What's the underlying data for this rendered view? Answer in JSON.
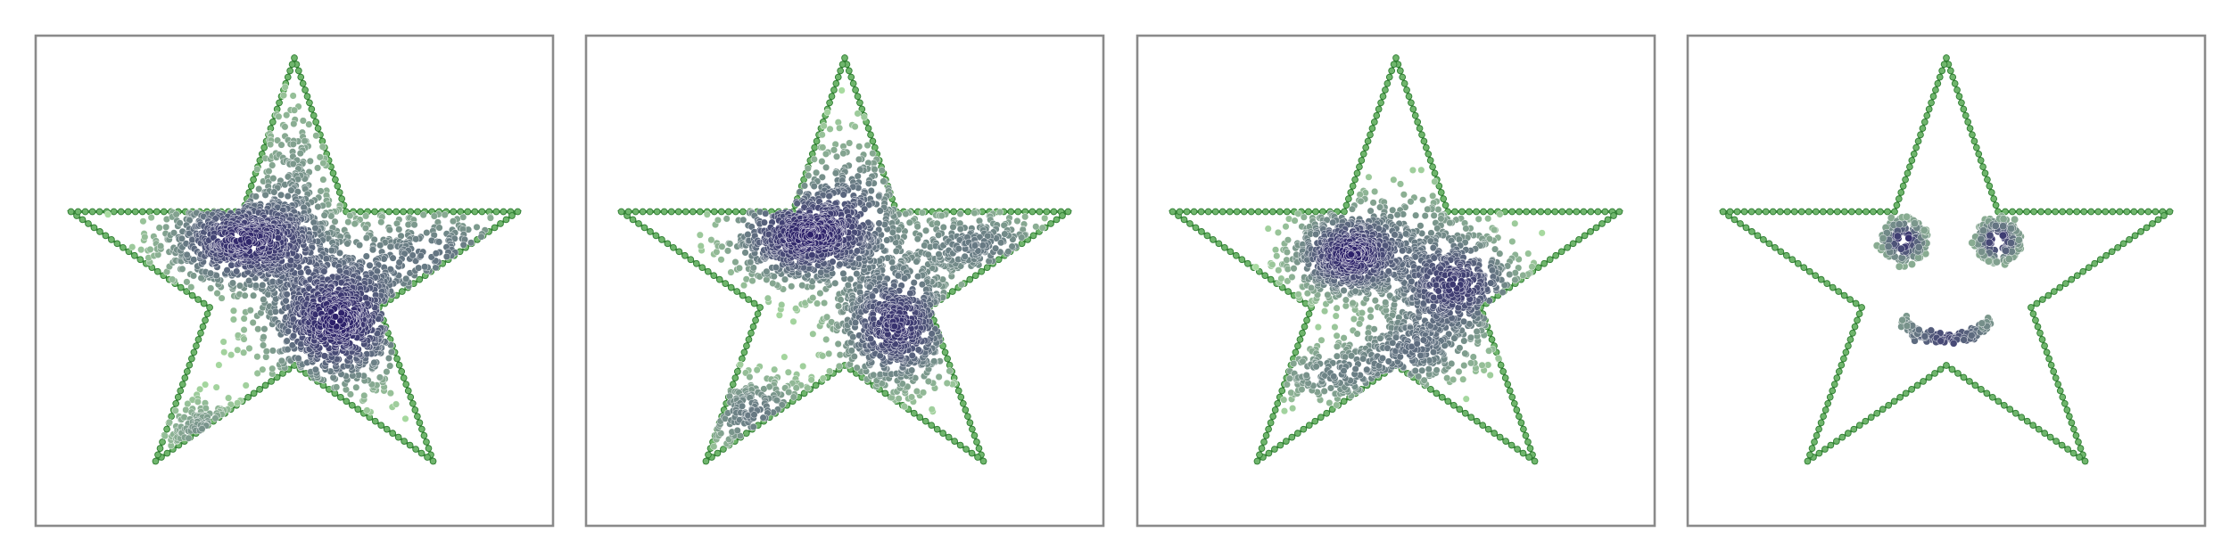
{
  "figure": {
    "panel_count": 4
  },
  "chart_data": [
    {
      "type": "scatter",
      "title": "",
      "xlabel": "",
      "ylabel": "",
      "xlim": [
        -1.1,
        1.1
      ],
      "ylim": [
        -1.1,
        1.1
      ],
      "grid": false,
      "legend": "none",
      "colormap": "crest",
      "color_range": [
        "#a8dba0",
        "#2b1f69"
      ],
      "boundary_color": "#3f8d3f",
      "series": [
        {
          "role": "boundary",
          "shape": "star",
          "vertices": [
            [
              0,
              1
            ],
            [
              0.22,
              0.31
            ],
            [
              0.95,
              0.31
            ],
            [
              0.36,
              -0.12
            ],
            [
              0.59,
              -0.81
            ],
            [
              0,
              -0.38
            ],
            [
              -0.59,
              -0.81
            ],
            [
              -0.36,
              -0.12
            ],
            [
              -0.95,
              0.31
            ],
            [
              -0.22,
              0.31
            ]
          ]
        },
        {
          "role": "samples",
          "n": 2200,
          "clusters": [
            {
              "x": -0.22,
              "y": 0.18,
              "sx": 0.18,
              "sy": 0.12,
              "w": 0.33
            },
            {
              "x": 0.18,
              "y": -0.18,
              "sx": 0.17,
              "sy": 0.16,
              "w": 0.36
            },
            {
              "x": 0.62,
              "y": 0.12,
              "sx": 0.28,
              "sy": 0.12,
              "w": 0.14
            },
            {
              "x": -0.38,
              "y": -0.68,
              "sx": 0.1,
              "sy": 0.08,
              "w": 0.09
            },
            {
              "x": 0.0,
              "y": 0.42,
              "sx": 0.1,
              "sy": 0.25,
              "w": 0.08
            }
          ]
        }
      ]
    },
    {
      "type": "scatter",
      "title": "",
      "xlabel": "",
      "ylabel": "",
      "xlim": [
        -1.1,
        1.1
      ],
      "ylim": [
        -1.1,
        1.1
      ],
      "grid": false,
      "legend": "none",
      "colormap": "crest",
      "color_range": [
        "#a8dba0",
        "#2b1f69"
      ],
      "boundary_color": "#3f8d3f",
      "series": [
        {
          "role": "boundary",
          "shape": "star",
          "vertices": [
            [
              0,
              1
            ],
            [
              0.22,
              0.31
            ],
            [
              0.95,
              0.31
            ],
            [
              0.36,
              -0.12
            ],
            [
              0.59,
              -0.81
            ],
            [
              0,
              -0.38
            ],
            [
              -0.59,
              -0.81
            ],
            [
              -0.36,
              -0.12
            ],
            [
              -0.95,
              0.31
            ],
            [
              -0.22,
              0.31
            ]
          ]
        },
        {
          "role": "samples",
          "n": 2000,
          "clusters": [
            {
              "x": -0.18,
              "y": 0.2,
              "sx": 0.17,
              "sy": 0.12,
              "w": 0.32
            },
            {
              "x": 0.22,
              "y": -0.2,
              "sx": 0.14,
              "sy": 0.15,
              "w": 0.3
            },
            {
              "x": 0.56,
              "y": 0.16,
              "sx": 0.2,
              "sy": 0.1,
              "w": 0.13
            },
            {
              "x": -0.38,
              "y": -0.6,
              "sx": 0.15,
              "sy": 0.1,
              "w": 0.13
            },
            {
              "x": 0.04,
              "y": 0.35,
              "sx": 0.14,
              "sy": 0.18,
              "w": 0.12
            }
          ]
        }
      ]
    },
    {
      "type": "scatter",
      "title": "",
      "xlabel": "",
      "ylabel": "",
      "xlim": [
        -1.1,
        1.1
      ],
      "ylim": [
        -1.1,
        1.1
      ],
      "grid": false,
      "legend": "none",
      "colormap": "crest",
      "color_range": [
        "#a8dba0",
        "#2b1f69"
      ],
      "boundary_color": "#3f8d3f",
      "series": [
        {
          "role": "boundary",
          "shape": "star",
          "vertices": [
            [
              0,
              1
            ],
            [
              0.22,
              0.31
            ],
            [
              0.95,
              0.31
            ],
            [
              0.36,
              -0.12
            ],
            [
              0.59,
              -0.81
            ],
            [
              0,
              -0.38
            ],
            [
              -0.59,
              -0.81
            ],
            [
              -0.36,
              -0.12
            ],
            [
              -0.95,
              0.31
            ],
            [
              -0.22,
              0.31
            ]
          ]
        },
        {
          "role": "samples",
          "n": 1700,
          "clusters": [
            {
              "x": -0.2,
              "y": 0.11,
              "sx": 0.13,
              "sy": 0.1,
              "w": 0.35
            },
            {
              "x": 0.25,
              "y": -0.02,
              "sx": 0.15,
              "sy": 0.12,
              "w": 0.3
            },
            {
              "x": 0.08,
              "y": -0.3,
              "sx": 0.16,
              "sy": 0.1,
              "w": 0.15
            },
            {
              "x": -0.25,
              "y": -0.42,
              "sx": 0.18,
              "sy": 0.08,
              "w": 0.12
            },
            {
              "x": 0.02,
              "y": 0.25,
              "sx": 0.22,
              "sy": 0.12,
              "w": 0.08
            }
          ]
        }
      ]
    },
    {
      "type": "scatter",
      "title": "",
      "xlabel": "",
      "ylabel": "",
      "xlim": [
        -1.1,
        1.1
      ],
      "ylim": [
        -1.1,
        1.1
      ],
      "grid": false,
      "legend": "none",
      "colormap": "crest",
      "color_range": [
        "#a8dba0",
        "#2b1f69"
      ],
      "boundary_color": "#3f8d3f",
      "series": [
        {
          "role": "boundary",
          "shape": "star",
          "vertices": [
            [
              0,
              1
            ],
            [
              0.22,
              0.31
            ],
            [
              0.95,
              0.31
            ],
            [
              0.36,
              -0.12
            ],
            [
              0.59,
              -0.81
            ],
            [
              0,
              -0.38
            ],
            [
              -0.59,
              -0.81
            ],
            [
              -0.36,
              -0.12
            ],
            [
              -0.95,
              0.31
            ],
            [
              -0.22,
              0.31
            ]
          ]
        },
        {
          "role": "samples",
          "pattern": "smiley",
          "features": {
            "left_eye": {
              "x": -0.18,
              "y": 0.18,
              "r": 0.09
            },
            "right_eye": {
              "x": 0.22,
              "y": 0.18,
              "r": 0.09
            },
            "smile": {
              "x": 0.0,
              "y": -0.18,
              "rx": 0.17,
              "ry": 0.08
            }
          }
        }
      ]
    }
  ]
}
